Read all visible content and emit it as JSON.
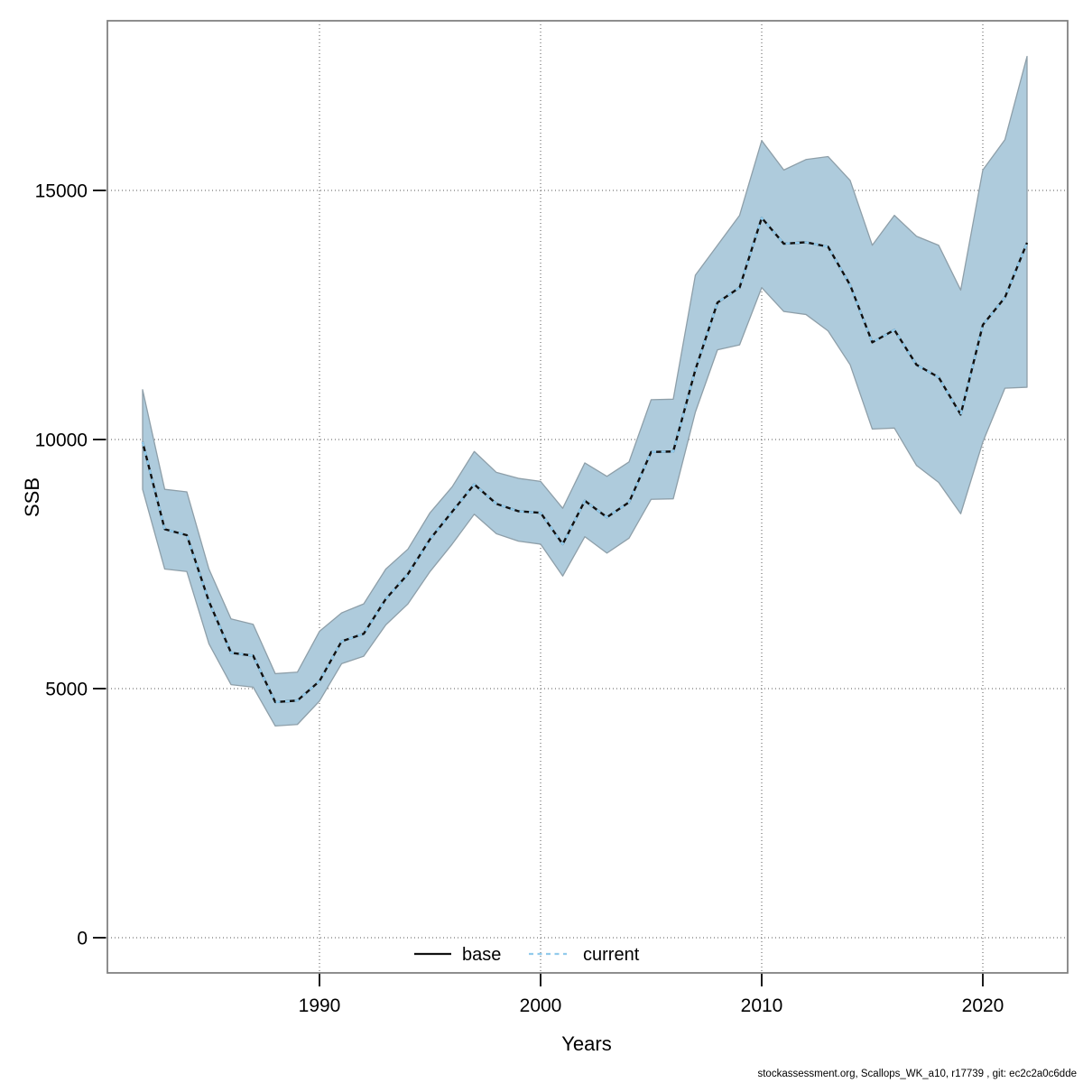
{
  "chart_data": {
    "type": "area",
    "title": "",
    "xlabel": "Years",
    "ylabel": "SSB",
    "x_ticks": [
      1990,
      2000,
      2010,
      2020
    ],
    "y_ticks": [
      0,
      5000,
      10000,
      15000
    ],
    "xlim": [
      1980.4,
      2023.8
    ],
    "ylim": [
      -710,
      18400
    ],
    "grid": "dotted",
    "legend_position": "bottom-center-inside",
    "years": [
      1982,
      1983,
      1984,
      1985,
      1986,
      1987,
      1988,
      1989,
      1990,
      1991,
      1992,
      1993,
      1994,
      1995,
      1996,
      1997,
      1998,
      1999,
      2000,
      2001,
      2002,
      2003,
      2004,
      2005,
      2006,
      2007,
      2008,
      2009,
      2010,
      2011,
      2012,
      2013,
      2014,
      2015,
      2016,
      2017,
      2018,
      2019,
      2020,
      2021,
      2022
    ],
    "series": [
      {
        "name": "base",
        "style": "solid",
        "color": "#111111",
        "values": [
          9950,
          8200,
          8080,
          6750,
          5720,
          5660,
          4730,
          4760,
          5150,
          5950,
          6100,
          6800,
          7300,
          8000,
          8550,
          9100,
          8710,
          8560,
          8530,
          7900,
          8770,
          8440,
          8740,
          9750,
          9760,
          11400,
          12750,
          13050,
          14450,
          13930,
          13960,
          13870,
          13100,
          11950,
          12200,
          11500,
          11250,
          10500,
          12300,
          12850,
          13950
        ]
      },
      {
        "name": "current",
        "style": "dashed",
        "color": "#92cbec",
        "values": [
          9950,
          8200,
          8080,
          6750,
          5720,
          5660,
          4730,
          4760,
          5150,
          5950,
          6100,
          6800,
          7300,
          8000,
          8550,
          9100,
          8710,
          8560,
          8530,
          7900,
          8770,
          8440,
          8740,
          9750,
          9760,
          11400,
          12750,
          13050,
          14450,
          13930,
          13960,
          13870,
          13100,
          11950,
          12200,
          11500,
          11250,
          10500,
          12300,
          12850,
          13950
        ]
      }
    ],
    "band": {
      "name": "confidence-band",
      "fill": "#aecbdc",
      "edge": "#8e9fa9",
      "lower": [
        9000,
        7400,
        7350,
        5900,
        5080,
        5030,
        4250,
        4280,
        4750,
        5500,
        5650,
        6280,
        6700,
        7350,
        7900,
        8500,
        8110,
        7960,
        7900,
        7260,
        8050,
        7720,
        8020,
        8800,
        8810,
        10550,
        11800,
        11900,
        13050,
        12570,
        12510,
        12180,
        11500,
        10210,
        10230,
        9480,
        9140,
        8510,
        9950,
        11030,
        11050
      ],
      "upper": [
        11000,
        9000,
        8950,
        7400,
        6400,
        6290,
        5300,
        5330,
        6150,
        6520,
        6700,
        7400,
        7800,
        8530,
        9050,
        9760,
        9340,
        9220,
        9160,
        8620,
        9530,
        9260,
        9550,
        10800,
        10810,
        13300,
        13900,
        14500,
        16000,
        15410,
        15620,
        15680,
        15200,
        13900,
        14500,
        14080,
        13900,
        13000,
        15410,
        16020,
        17690
      ]
    }
  },
  "legend": {
    "items": [
      {
        "label": "base",
        "line_style": "solid",
        "color": "#111111"
      },
      {
        "label": "current",
        "line_style": "dashed",
        "color": "#92cbec"
      }
    ]
  },
  "footer": {
    "credit": "stockassessment.org, Scallops_WK_a10, r17739 , git: ec2c2a0c6dde"
  }
}
